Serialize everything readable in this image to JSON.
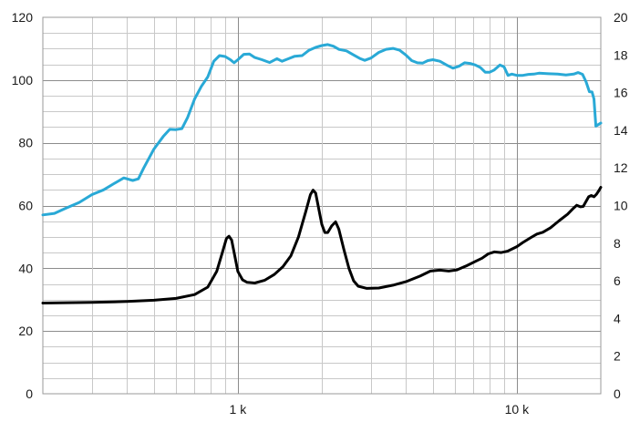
{
  "chart_data": {
    "type": "line",
    "x_scale": "log",
    "xlim": [
      200,
      20000
    ],
    "x_ticks": [
      {
        "value": 1000,
        "label": "1 k"
      },
      {
        "value": 10000,
        "label": "10 k"
      }
    ],
    "y_left": {
      "lim": [
        0,
        120
      ],
      "ticks": [
        "0",
        "20",
        "40",
        "60",
        "80",
        "100",
        "120"
      ]
    },
    "y_right": {
      "lim": [
        0,
        20
      ],
      "ticks": [
        "0",
        "2",
        "4",
        "6",
        "8",
        "10",
        "12",
        "14",
        "16",
        "18",
        "20"
      ]
    },
    "grid": true,
    "series": [
      {
        "axis": "left",
        "color": "#29a9d6",
        "points": [
          [
            200,
            57
          ],
          [
            220,
            57.5
          ],
          [
            240,
            59
          ],
          [
            270,
            61
          ],
          [
            300,
            63.5
          ],
          [
            330,
            65
          ],
          [
            360,
            67
          ],
          [
            390,
            68.8
          ],
          [
            420,
            68
          ],
          [
            440,
            68.5
          ],
          [
            460,
            72
          ],
          [
            500,
            78
          ],
          [
            540,
            82
          ],
          [
            570,
            84.3
          ],
          [
            600,
            84.2
          ],
          [
            630,
            84.5
          ],
          [
            660,
            88
          ],
          [
            700,
            94
          ],
          [
            740,
            98
          ],
          [
            780,
            101
          ],
          [
            820,
            106
          ],
          [
            860,
            107.8
          ],
          [
            900,
            107.5
          ],
          [
            940,
            106.5
          ],
          [
            970,
            105.5
          ],
          [
            1000,
            106.5
          ],
          [
            1050,
            108.2
          ],
          [
            1100,
            108.3
          ],
          [
            1150,
            107.2
          ],
          [
            1220,
            106.5
          ],
          [
            1300,
            105.6
          ],
          [
            1380,
            106.8
          ],
          [
            1440,
            106
          ],
          [
            1520,
            106.8
          ],
          [
            1600,
            107.6
          ],
          [
            1700,
            107.8
          ],
          [
            1800,
            109.5
          ],
          [
            1900,
            110.4
          ],
          [
            2000,
            111
          ],
          [
            2100,
            111.3
          ],
          [
            2200,
            110.8
          ],
          [
            2300,
            109.8
          ],
          [
            2450,
            109.3
          ],
          [
            2600,
            108
          ],
          [
            2750,
            106.8
          ],
          [
            2850,
            106.3
          ],
          [
            3000,
            107
          ],
          [
            3200,
            108.8
          ],
          [
            3400,
            109.8
          ],
          [
            3600,
            110.1
          ],
          [
            3800,
            109.5
          ],
          [
            4000,
            108
          ],
          [
            4200,
            106.2
          ],
          [
            4400,
            105.5
          ],
          [
            4600,
            105.4
          ],
          [
            4800,
            106.2
          ],
          [
            5000,
            106.5
          ],
          [
            5300,
            106
          ],
          [
            5600,
            104.8
          ],
          [
            5900,
            103.8
          ],
          [
            6200,
            104.4
          ],
          [
            6500,
            105.5
          ],
          [
            6800,
            105.3
          ],
          [
            7100,
            104.8
          ],
          [
            7400,
            104
          ],
          [
            7700,
            102.5
          ],
          [
            8000,
            102.5
          ],
          [
            8300,
            103.2
          ],
          [
            8700,
            104.8
          ],
          [
            9000,
            104.2
          ],
          [
            9300,
            101.5
          ],
          [
            9600,
            101.9
          ],
          [
            10000,
            101.5
          ],
          [
            10500,
            101.5
          ],
          [
            11000,
            101.8
          ],
          [
            11500,
            101.9
          ],
          [
            12000,
            102.2
          ],
          [
            13000,
            102
          ],
          [
            14000,
            101.9
          ],
          [
            15000,
            101.6
          ],
          [
            16000,
            101.9
          ],
          [
            16600,
            102.4
          ],
          [
            17200,
            101.8
          ],
          [
            17700,
            99.5
          ],
          [
            18200,
            96.3
          ],
          [
            18600,
            96.2
          ],
          [
            18900,
            94
          ],
          [
            19200,
            85.3
          ],
          [
            19600,
            85.8
          ],
          [
            20000,
            86.3
          ]
        ]
      },
      {
        "axis": "left",
        "color": "#000000",
        "points": [
          [
            200,
            28.9
          ],
          [
            300,
            29.1
          ],
          [
            400,
            29.4
          ],
          [
            500,
            29.8
          ],
          [
            600,
            30.4
          ],
          [
            700,
            31.6
          ],
          [
            780,
            34
          ],
          [
            840,
            39
          ],
          [
            880,
            45
          ],
          [
            910,
            49.5
          ],
          [
            930,
            50.2
          ],
          [
            950,
            49
          ],
          [
            970,
            45
          ],
          [
            1000,
            39
          ],
          [
            1040,
            36.3
          ],
          [
            1080,
            35.5
          ],
          [
            1150,
            35.3
          ],
          [
            1250,
            36.2
          ],
          [
            1350,
            38
          ],
          [
            1450,
            40.5
          ],
          [
            1550,
            44
          ],
          [
            1650,
            50
          ],
          [
            1750,
            58
          ],
          [
            1820,
            63.5
          ],
          [
            1860,
            64.9
          ],
          [
            1900,
            64
          ],
          [
            1950,
            59
          ],
          [
            2000,
            54
          ],
          [
            2050,
            51.4
          ],
          [
            2100,
            51.4
          ],
          [
            2170,
            53.5
          ],
          [
            2240,
            54.8
          ],
          [
            2300,
            52.5
          ],
          [
            2400,
            46
          ],
          [
            2500,
            40
          ],
          [
            2600,
            36
          ],
          [
            2700,
            34.3
          ],
          [
            2900,
            33.6
          ],
          [
            3200,
            33.7
          ],
          [
            3600,
            34.6
          ],
          [
            4000,
            35.7
          ],
          [
            4500,
            37.5
          ],
          [
            4900,
            39.1
          ],
          [
            5300,
            39.4
          ],
          [
            5700,
            39.1
          ],
          [
            6100,
            39.5
          ],
          [
            6600,
            40.8
          ],
          [
            7100,
            42.2
          ],
          [
            7500,
            43.2
          ],
          [
            7900,
            44.6
          ],
          [
            8300,
            45.2
          ],
          [
            8800,
            45
          ],
          [
            9300,
            45.5
          ],
          [
            10000,
            46.9
          ],
          [
            10500,
            48.2
          ],
          [
            11200,
            49.7
          ],
          [
            11800,
            50.9
          ],
          [
            12400,
            51.5
          ],
          [
            13200,
            52.9
          ],
          [
            14200,
            55.2
          ],
          [
            15200,
            57.2
          ],
          [
            15900,
            59
          ],
          [
            16400,
            60.1
          ],
          [
            16900,
            59.6
          ],
          [
            17300,
            59.7
          ],
          [
            17700,
            61.3
          ],
          [
            18100,
            62.8
          ],
          [
            18500,
            63.2
          ],
          [
            18900,
            62.8
          ],
          [
            19300,
            63.6
          ],
          [
            19700,
            64.8
          ],
          [
            20000,
            65.8
          ]
        ]
      }
    ]
  }
}
